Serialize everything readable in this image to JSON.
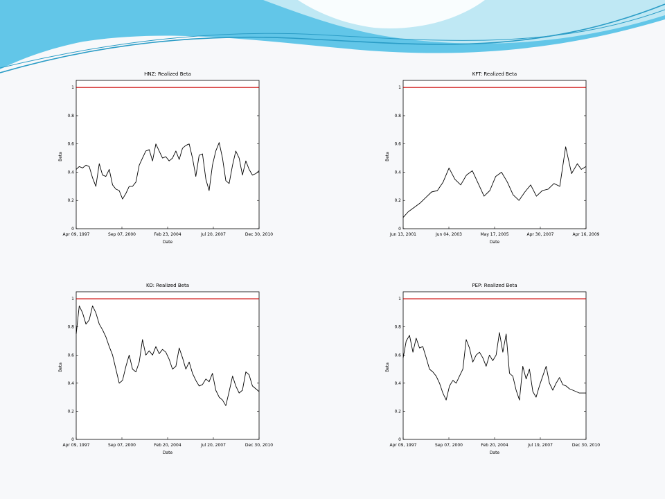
{
  "theme": {
    "background": "#f7f8fa",
    "wave_colors": [
      "#62c6e8",
      "#bfe8f4",
      "#2a9cc6",
      "#ffffff"
    ],
    "line_color": "#000000",
    "reference_color": "#cc0000"
  },
  "chart_data": [
    {
      "type": "line",
      "title": "HNZ: Realized Beta",
      "xlabel": "Date",
      "ylabel": "Beta",
      "xlim": [
        "1997-04-09",
        "2010-12-30"
      ],
      "xtick_labels": [
        "Apr 09, 1997",
        "Sep 07, 2000",
        "Feb 23, 2004",
        "Jul 20, 2007",
        "Dec 30, 2010"
      ],
      "ylim": [
        0,
        1.05
      ],
      "yticks": [
        0,
        0.2,
        0.4,
        0.6,
        0.8,
        1
      ],
      "ytick_labels": [
        "0",
        "0.2",
        "0.4",
        "0.6",
        "0.8",
        "1"
      ],
      "reference_line": 1,
      "grid": false,
      "series": [
        {
          "x": [
            "1997-04-09",
            "1997-07-01",
            "1997-10-01",
            "1998-01-01",
            "1998-04-01",
            "1998-07-01",
            "1998-10-01",
            "1999-01-01",
            "1999-04-01",
            "1999-07-01",
            "1999-10-01",
            "2000-01-01",
            "2000-04-01",
            "2000-07-01",
            "2000-10-01",
            "2001-01-01",
            "2001-04-01",
            "2001-07-01",
            "2001-10-01",
            "2002-01-01",
            "2002-04-01",
            "2002-07-01",
            "2002-10-01",
            "2003-01-01",
            "2003-04-01",
            "2003-07-01",
            "2003-10-01",
            "2004-01-01",
            "2004-04-01",
            "2004-07-01",
            "2004-10-01",
            "2005-01-01",
            "2005-04-01",
            "2005-07-01",
            "2005-10-01",
            "2006-01-01",
            "2006-04-01",
            "2006-07-01",
            "2006-10-01",
            "2007-01-01",
            "2007-04-01",
            "2007-07-01",
            "2007-10-01",
            "2008-01-01",
            "2008-04-01",
            "2008-07-01",
            "2008-10-01",
            "2009-01-01",
            "2009-04-01",
            "2009-07-01",
            "2009-10-01",
            "2010-01-01",
            "2010-04-01",
            "2010-07-01",
            "2010-10-01",
            "2010-12-30"
          ],
          "values": [
            0.42,
            0.44,
            0.43,
            0.45,
            0.44,
            0.36,
            0.3,
            0.46,
            0.38,
            0.37,
            0.42,
            0.31,
            0.28,
            0.27,
            0.21,
            0.25,
            0.3,
            0.3,
            0.33,
            0.45,
            0.5,
            0.55,
            0.56,
            0.48,
            0.6,
            0.55,
            0.5,
            0.51,
            0.48,
            0.5,
            0.55,
            0.49,
            0.57,
            0.59,
            0.6,
            0.5,
            0.37,
            0.52,
            0.53,
            0.35,
            0.27,
            0.45,
            0.55,
            0.61,
            0.5,
            0.34,
            0.32,
            0.45,
            0.55,
            0.5,
            0.38,
            0.48,
            0.42,
            0.38,
            0.39,
            0.41
          ]
        }
      ]
    },
    {
      "type": "line",
      "title": "KFT: Realized Beta",
      "xlabel": "Date",
      "ylabel": "Beta",
      "xlim": [
        "2001-06-13",
        "2009-04-16"
      ],
      "xtick_labels": [
        "Jun 13, 2001",
        "Jun 04, 2003",
        "May 17, 2005",
        "Apr 30, 2007",
        "Apr 16, 2009"
      ],
      "ylim": [
        0,
        1.05
      ],
      "yticks": [
        0,
        0.2,
        0.4,
        0.6,
        0.8,
        1
      ],
      "ytick_labels": [
        "0",
        "0.2",
        "0.4",
        "0.6",
        "0.8",
        "1"
      ],
      "reference_line": 1,
      "grid": false,
      "series": [
        {
          "x": [
            "2001-06-13",
            "2001-09-01",
            "2001-12-01",
            "2002-03-01",
            "2002-06-01",
            "2002-09-01",
            "2002-12-01",
            "2003-03-01",
            "2003-06-01",
            "2003-09-01",
            "2003-12-01",
            "2004-03-01",
            "2004-06-01",
            "2004-09-01",
            "2004-12-01",
            "2005-03-01",
            "2005-06-01",
            "2005-09-01",
            "2005-12-01",
            "2006-03-01",
            "2006-06-01",
            "2006-09-01",
            "2006-12-01",
            "2007-03-01",
            "2007-06-01",
            "2007-09-01",
            "2007-12-01",
            "2008-03-01",
            "2008-06-01",
            "2008-09-01",
            "2008-12-01",
            "2009-02-01",
            "2009-04-16"
          ],
          "values": [
            0.08,
            0.12,
            0.15,
            0.18,
            0.22,
            0.26,
            0.27,
            0.33,
            0.43,
            0.35,
            0.31,
            0.38,
            0.41,
            0.32,
            0.23,
            0.27,
            0.37,
            0.4,
            0.33,
            0.24,
            0.2,
            0.26,
            0.31,
            0.23,
            0.27,
            0.28,
            0.32,
            0.3,
            0.58,
            0.39,
            0.46,
            0.42,
            0.44
          ]
        }
      ]
    },
    {
      "type": "line",
      "title": "KO: Realized Beta",
      "xlabel": "Date",
      "ylabel": "Beta",
      "xlim": [
        "1997-04-09",
        "2010-12-30"
      ],
      "xtick_labels": [
        "Apr 09, 1997",
        "Sep 07, 2000",
        "Feb 20, 2004",
        "Jul 20, 2007",
        "Dec 30, 2010"
      ],
      "ylim": [
        0,
        1.05
      ],
      "yticks": [
        0,
        0.2,
        0.4,
        0.6,
        0.8,
        1
      ],
      "ytick_labels": [
        "0",
        "0.2",
        "0.4",
        "0.6",
        "0.8",
        "1"
      ],
      "reference_line": 1,
      "grid": false,
      "series": [
        {
          "x": [
            "1997-04-09",
            "1997-07-01",
            "1997-10-01",
            "1998-01-01",
            "1998-04-01",
            "1998-07-01",
            "1998-10-01",
            "1999-01-01",
            "1999-04-01",
            "1999-07-01",
            "1999-10-01",
            "2000-01-01",
            "2000-04-01",
            "2000-07-01",
            "2000-10-01",
            "2001-01-01",
            "2001-04-01",
            "2001-07-01",
            "2001-10-01",
            "2002-01-01",
            "2002-04-01",
            "2002-07-01",
            "2002-10-01",
            "2003-01-01",
            "2003-04-01",
            "2003-07-01",
            "2003-10-01",
            "2004-01-01",
            "2004-04-01",
            "2004-07-01",
            "2004-10-01",
            "2005-01-01",
            "2005-04-01",
            "2005-07-01",
            "2005-10-01",
            "2006-01-01",
            "2006-04-01",
            "2006-07-01",
            "2006-10-01",
            "2007-01-01",
            "2007-04-01",
            "2007-07-01",
            "2007-10-01",
            "2008-01-01",
            "2008-04-01",
            "2008-07-01",
            "2008-10-01",
            "2009-01-01",
            "2009-04-01",
            "2009-07-01",
            "2009-10-01",
            "2010-01-01",
            "2010-04-01",
            "2010-07-01",
            "2010-10-01",
            "2010-12-30"
          ],
          "values": [
            0.75,
            0.95,
            0.9,
            0.82,
            0.85,
            0.95,
            0.9,
            0.82,
            0.78,
            0.73,
            0.66,
            0.6,
            0.5,
            0.4,
            0.42,
            0.52,
            0.6,
            0.5,
            0.48,
            0.55,
            0.71,
            0.6,
            0.63,
            0.6,
            0.66,
            0.61,
            0.64,
            0.62,
            0.57,
            0.5,
            0.52,
            0.65,
            0.58,
            0.5,
            0.55,
            0.47,
            0.42,
            0.38,
            0.39,
            0.43,
            0.41,
            0.47,
            0.35,
            0.3,
            0.28,
            0.24,
            0.34,
            0.45,
            0.38,
            0.33,
            0.35,
            0.48,
            0.46,
            0.38,
            0.36,
            0.34
          ]
        }
      ]
    },
    {
      "type": "line",
      "title": "PEP: Realized Beta",
      "xlabel": "Date",
      "ylabel": "Beta",
      "xlim": [
        "1997-04-09",
        "2010-12-30"
      ],
      "xtick_labels": [
        "Apr 09, 1997",
        "Sep 07, 2000",
        "Feb 20, 2004",
        "Jul 19, 2007",
        "Dec 30, 2010"
      ],
      "ylim": [
        0,
        1.05
      ],
      "yticks": [
        0,
        0.2,
        0.4,
        0.6,
        0.8,
        1
      ],
      "ytick_labels": [
        "0",
        "0.2",
        "0.4",
        "0.6",
        "0.8",
        "1"
      ],
      "reference_line": 1,
      "grid": false,
      "series": [
        {
          "x": [
            "1997-04-09",
            "1997-07-01",
            "1997-10-01",
            "1998-01-01",
            "1998-04-01",
            "1998-07-01",
            "1998-10-01",
            "1999-01-01",
            "1999-04-01",
            "1999-07-01",
            "1999-10-01",
            "2000-01-01",
            "2000-04-01",
            "2000-07-01",
            "2000-10-01",
            "2001-01-01",
            "2001-04-01",
            "2001-07-01",
            "2001-10-01",
            "2002-01-01",
            "2002-04-01",
            "2002-07-01",
            "2002-10-01",
            "2003-01-01",
            "2003-04-01",
            "2003-07-01",
            "2003-10-01",
            "2004-01-01",
            "2004-04-01",
            "2004-07-01",
            "2004-10-01",
            "2005-01-01",
            "2005-04-01",
            "2005-07-01",
            "2005-10-01",
            "2006-01-01",
            "2006-04-01",
            "2006-07-01",
            "2006-10-01",
            "2007-01-01",
            "2007-04-01",
            "2007-07-01",
            "2007-10-01",
            "2008-01-01",
            "2008-04-01",
            "2008-07-01",
            "2008-10-01",
            "2009-01-01",
            "2009-04-01",
            "2009-07-01",
            "2009-10-01",
            "2010-01-01",
            "2010-04-01",
            "2010-07-01",
            "2010-10-01",
            "2010-12-30"
          ],
          "values": [
            0.58,
            0.7,
            0.74,
            0.62,
            0.72,
            0.65,
            0.66,
            0.58,
            0.5,
            0.48,
            0.45,
            0.4,
            0.33,
            0.28,
            0.38,
            0.42,
            0.4,
            0.45,
            0.5,
            0.71,
            0.65,
            0.55,
            0.6,
            0.62,
            0.58,
            0.52,
            0.6,
            0.56,
            0.6,
            0.76,
            0.62,
            0.75,
            0.47,
            0.45,
            0.35,
            0.28,
            0.52,
            0.43,
            0.5,
            0.34,
            0.3,
            0.38,
            0.45,
            0.52,
            0.4,
            0.35,
            0.4,
            0.44,
            0.39,
            0.38,
            0.36,
            0.35,
            0.34,
            0.33,
            0.33,
            0.33
          ]
        }
      ]
    }
  ]
}
